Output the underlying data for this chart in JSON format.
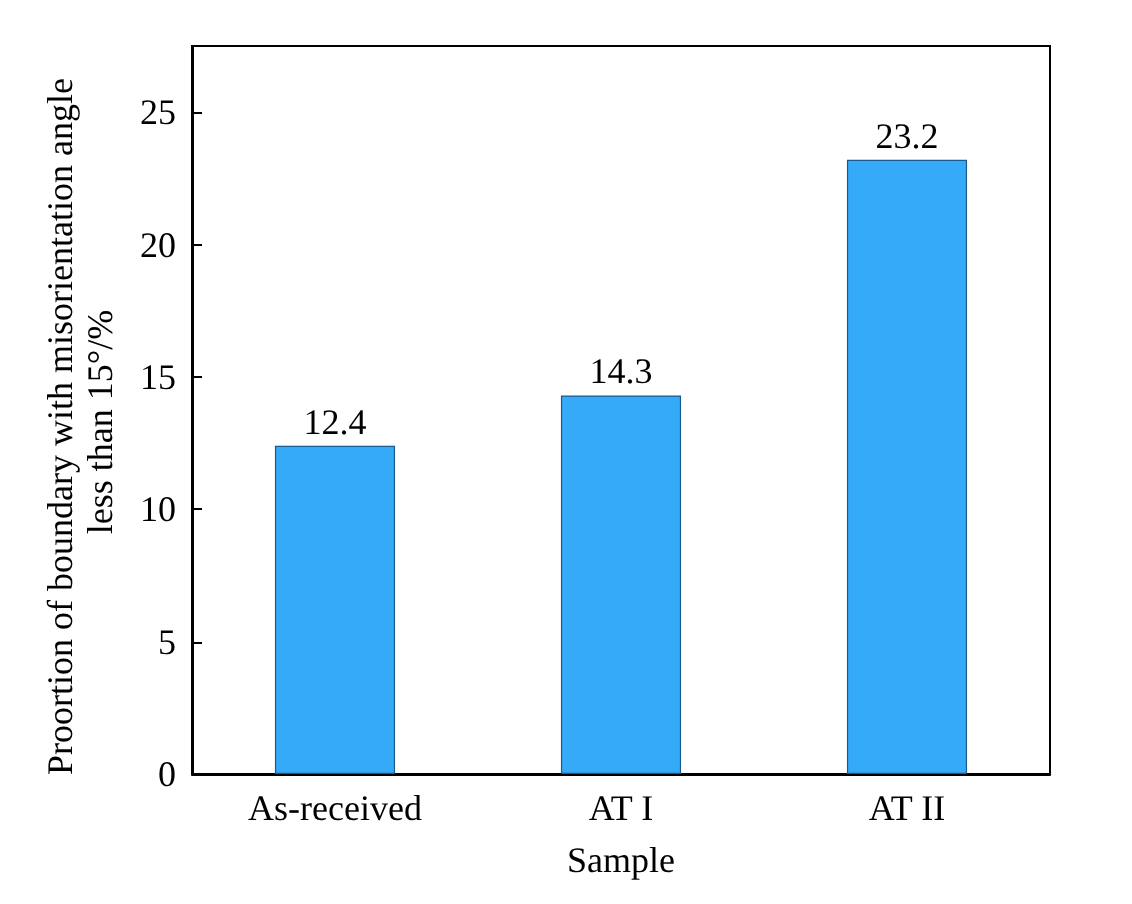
{
  "chart_data": {
    "type": "bar",
    "xlabel": "Sample",
    "ylabel": "Proortion of boundary with misorientation angle less than 15°/%",
    "categories": [
      "As-received",
      "AT I",
      "AT II"
    ],
    "values": [
      12.4,
      14.3,
      23.2
    ],
    "color": "#35aaf8",
    "ylim": [
      0,
      27.5
    ],
    "yticks": [
      0,
      5,
      10,
      15,
      20,
      25
    ],
    "grid": false,
    "data_labels": true
  }
}
